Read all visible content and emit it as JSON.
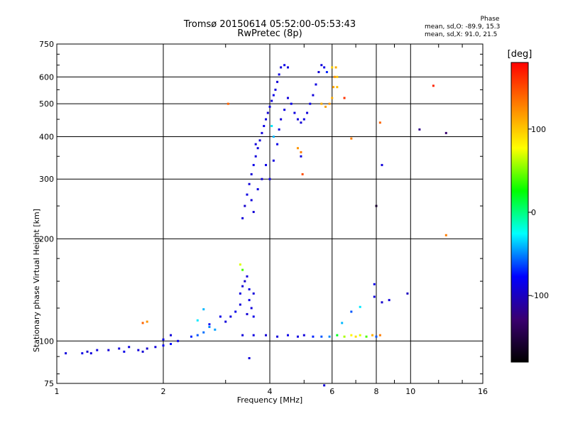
{
  "header": {
    "title_line1": "Tromsø 20150614 05:52:00-05:53:43",
    "title_line2": "RwPretec (8p)",
    "phase_title": "Phase",
    "phase_o": "mean, sd,O: -89.9, 15.3",
    "phase_x": "mean, sd,X:  91.0, 21.5"
  },
  "colorbar": {
    "title": "[deg]",
    "ticks": [
      "100",
      "0",
      "-100"
    ],
    "tick_values": [
      100,
      0,
      -100
    ],
    "range": [
      -180,
      180
    ],
    "colors": [
      "#000000",
      "#3a0070",
      "#0000ff",
      "#00ffff",
      "#00ff00",
      "#ffff00",
      "#ff8000",
      "#ff0000"
    ]
  },
  "chart_data": {
    "type": "scatter",
    "title": "Tromsø 20150614 05:52:00-05:53:43",
    "subtitle": "RwPretec (8p)",
    "xlabel": "Frequency [MHz]",
    "ylabel": "Stationary phase Virtual Height [km]",
    "x_scale": "log",
    "y_scale": "log",
    "xlim": [
      1,
      16
    ],
    "ylim": [
      75,
      750
    ],
    "x_ticks": [
      1,
      2,
      4,
      6,
      8,
      10,
      16
    ],
    "x_tick_labels": [
      "1",
      "2",
      "4",
      "6",
      "8",
      "10",
      "16"
    ],
    "y_ticks": [
      75,
      100,
      200,
      300,
      400,
      500,
      600,
      750
    ],
    "y_tick_labels": [
      "75",
      "100",
      "200",
      "300",
      "400",
      "500",
      "600",
      "750"
    ],
    "grid": true,
    "series": [
      {
        "color_scale": "phase_deg",
        "points": [
          [
            1.06,
            92,
            -90
          ],
          [
            1.18,
            92,
            -85
          ],
          [
            1.22,
            93,
            -95
          ],
          [
            1.25,
            92,
            -90
          ],
          [
            1.3,
            94,
            -88
          ],
          [
            1.4,
            94,
            -92
          ],
          [
            1.5,
            95,
            -90
          ],
          [
            1.55,
            93,
            -85
          ],
          [
            1.6,
            96,
            -88
          ],
          [
            1.7,
            94,
            -90
          ],
          [
            1.75,
            93,
            -92
          ],
          [
            1.8,
            95,
            -95
          ],
          [
            1.9,
            96,
            -90
          ],
          [
            2.0,
            97,
            -80
          ],
          [
            2.1,
            98,
            -75
          ],
          [
            2.0,
            101,
            -85
          ],
          [
            2.1,
            104,
            -90
          ],
          [
            2.2,
            100,
            -85
          ],
          [
            2.4,
            103,
            -70
          ],
          [
            2.5,
            104,
            -60
          ],
          [
            2.6,
            106,
            -55
          ],
          [
            2.7,
            110,
            -50
          ],
          [
            2.8,
            108,
            -45
          ],
          [
            2.7,
            112,
            -80
          ],
          [
            2.9,
            118,
            -85
          ],
          [
            3.0,
            114,
            -90
          ],
          [
            3.1,
            118,
            -88
          ],
          [
            3.2,
            122,
            -85
          ],
          [
            3.3,
            128,
            -90
          ],
          [
            3.3,
            138,
            -88
          ],
          [
            3.35,
            145,
            -92
          ],
          [
            3.4,
            150,
            -95
          ],
          [
            3.45,
            155,
            -90
          ],
          [
            3.5,
            142,
            -88
          ],
          [
            3.5,
            132,
            -85
          ],
          [
            3.55,
            125,
            -90
          ],
          [
            3.45,
            120,
            -92
          ],
          [
            3.6,
            138,
            -90
          ],
          [
            3.6,
            118,
            -85
          ],
          [
            3.35,
            162,
            40
          ],
          [
            3.3,
            168,
            70
          ],
          [
            3.35,
            104,
            -90
          ],
          [
            3.6,
            104,
            -88
          ],
          [
            3.9,
            104,
            -92
          ],
          [
            4.2,
            103,
            -90
          ],
          [
            4.5,
            104,
            -85
          ],
          [
            4.8,
            103,
            -88
          ],
          [
            5.0,
            104,
            -90
          ],
          [
            5.3,
            103,
            -70
          ],
          [
            5.6,
            103,
            -60
          ],
          [
            5.9,
            103,
            -50
          ],
          [
            6.2,
            104,
            20
          ],
          [
            6.5,
            103,
            60
          ],
          [
            6.8,
            104,
            80
          ],
          [
            7.0,
            103,
            90
          ],
          [
            7.2,
            104,
            70
          ],
          [
            7.5,
            103,
            40
          ],
          [
            7.8,
            104,
            110
          ],
          [
            8.0,
            103,
            -60
          ],
          [
            8.2,
            104,
            130
          ],
          [
            3.5,
            89,
            -90
          ],
          [
            5.7,
            74,
            -90
          ],
          [
            1.75,
            113,
            140
          ],
          [
            1.8,
            114,
            120
          ],
          [
            2.6,
            124,
            -40
          ],
          [
            2.5,
            115,
            -30
          ],
          [
            6.4,
            113,
            -40
          ],
          [
            6.8,
            122,
            -60
          ],
          [
            7.2,
            126,
            -30
          ],
          [
            7.9,
            135,
            -90
          ],
          [
            8.3,
            130,
            -95
          ],
          [
            8.7,
            132,
            -90
          ],
          [
            7.9,
            147,
            -85
          ],
          [
            9.8,
            138,
            -100
          ],
          [
            3.35,
            230,
            -90
          ],
          [
            3.4,
            250,
            -95
          ],
          [
            3.45,
            270,
            -88
          ],
          [
            3.5,
            290,
            -90
          ],
          [
            3.55,
            310,
            -92
          ],
          [
            3.6,
            330,
            -85
          ],
          [
            3.65,
            350,
            -90
          ],
          [
            3.7,
            370,
            -88
          ],
          [
            3.75,
            390,
            -92
          ],
          [
            3.8,
            410,
            -90
          ],
          [
            3.85,
            430,
            -85
          ],
          [
            3.9,
            450,
            -90
          ],
          [
            3.95,
            470,
            -92
          ],
          [
            4.0,
            490,
            -88
          ],
          [
            4.05,
            510,
            -90
          ],
          [
            4.1,
            530,
            -85
          ],
          [
            4.15,
            550,
            -90
          ],
          [
            4.2,
            580,
            -92
          ],
          [
            4.25,
            610,
            -88
          ],
          [
            4.3,
            640,
            -90
          ],
          [
            4.4,
            650,
            -85
          ],
          [
            4.5,
            640,
            -90
          ],
          [
            4.0,
            300,
            -90
          ],
          [
            4.1,
            340,
            -88
          ],
          [
            4.2,
            380,
            -85
          ],
          [
            4.25,
            420,
            -90
          ],
          [
            4.3,
            450,
            -92
          ],
          [
            4.4,
            480,
            -88
          ],
          [
            4.5,
            520,
            -90
          ],
          [
            4.6,
            500,
            -85
          ],
          [
            4.7,
            470,
            -88
          ],
          [
            4.8,
            450,
            -90
          ],
          [
            4.9,
            440,
            -92
          ],
          [
            5.0,
            450,
            -88
          ],
          [
            5.1,
            470,
            -90
          ],
          [
            5.2,
            500,
            -85
          ],
          [
            5.3,
            530,
            -90
          ],
          [
            5.4,
            570,
            -88
          ],
          [
            5.5,
            620,
            -92
          ],
          [
            5.6,
            650,
            -90
          ],
          [
            5.7,
            640,
            -85
          ],
          [
            5.8,
            620,
            -70
          ],
          [
            5.6,
            500,
            110
          ],
          [
            5.75,
            490,
            115
          ],
          [
            5.9,
            500,
            120
          ],
          [
            6.0,
            520,
            110
          ],
          [
            6.05,
            560,
            115
          ],
          [
            6.1,
            600,
            120
          ],
          [
            6.15,
            640,
            110
          ],
          [
            6.2,
            600,
            100
          ],
          [
            6.2,
            560,
            105
          ],
          [
            6.0,
            640,
            95
          ],
          [
            3.55,
            260,
            -90
          ],
          [
            3.6,
            240,
            -92
          ],
          [
            3.7,
            280,
            -88
          ],
          [
            3.8,
            300,
            -90
          ],
          [
            3.9,
            330,
            -85
          ],
          [
            3.65,
            380,
            -90
          ],
          [
            4.05,
            430,
            -30
          ],
          [
            4.1,
            400,
            -40
          ],
          [
            4.8,
            370,
            120
          ],
          [
            4.9,
            360,
            130
          ],
          [
            4.95,
            310,
            150
          ],
          [
            4.9,
            350,
            -90
          ],
          [
            3.05,
            500,
            140
          ],
          [
            6.5,
            520,
            160
          ],
          [
            6.8,
            395,
            130
          ],
          [
            8.2,
            440,
            140
          ],
          [
            11.6,
            565,
            165
          ],
          [
            10.6,
            420,
            -120
          ],
          [
            12.6,
            410,
            -130
          ],
          [
            12.6,
            205,
            130
          ],
          [
            8.0,
            250,
            -160
          ],
          [
            8.3,
            330,
            -90
          ]
        ]
      }
    ]
  }
}
